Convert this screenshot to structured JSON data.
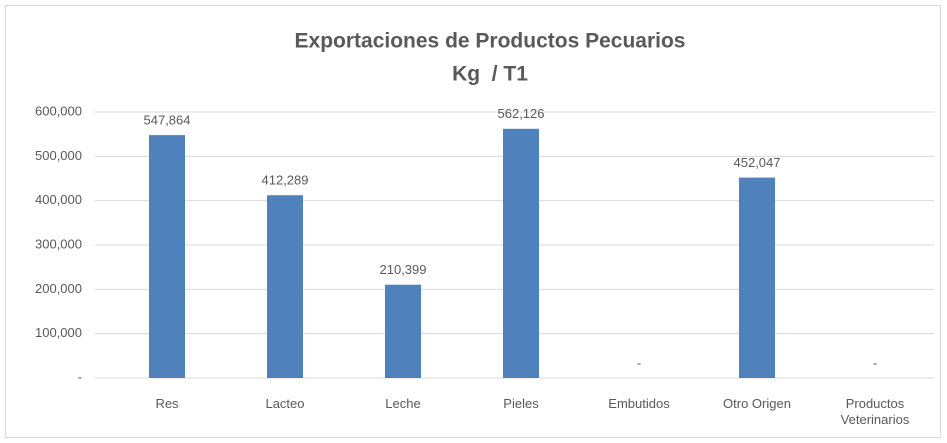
{
  "chart_data": {
    "type": "bar",
    "title": "Exportaciones de Productos Pecuarios",
    "subtitle": "Kg  / T1",
    "categories": [
      "Res",
      "Lacteo",
      "Leche",
      "Pieles",
      "Embutidos",
      "Otro Origen",
      "Productos Veterinarios"
    ],
    "values": [
      547864,
      412289,
      210399,
      562126,
      0,
      452047,
      0
    ],
    "value_labels": [
      "547,864",
      "412,289",
      "210,399",
      "562,126",
      "-",
      "452,047",
      "-"
    ],
    "color": "#4f81bd",
    "ylim": [
      0,
      600000
    ],
    "yticks": [
      {
        "value": 0,
        "label": "-"
      },
      {
        "value": 100000,
        "label": "100,000"
      },
      {
        "value": 200000,
        "label": "200,000"
      },
      {
        "value": 300000,
        "label": "300,000"
      },
      {
        "value": 400000,
        "label": "400,000"
      },
      {
        "value": 500000,
        "label": "500,000"
      },
      {
        "value": 600000,
        "label": "600,000"
      }
    ],
    "grid": true
  }
}
